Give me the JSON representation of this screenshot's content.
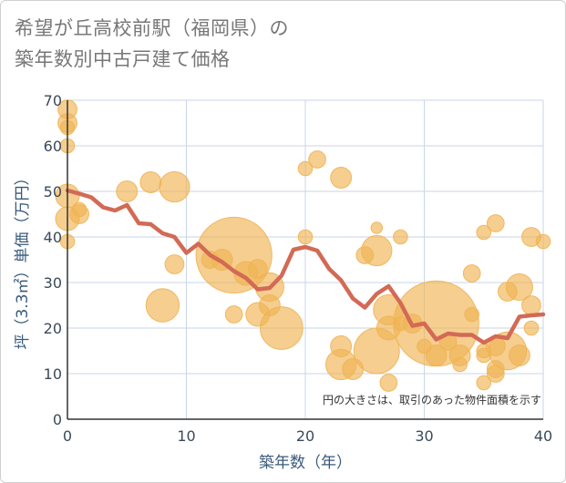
{
  "title_line1": "希望が丘高校前駅（福岡県）の",
  "title_line2": "築年数別中古戸建て価格",
  "colors": {
    "bubble": "#f0b454",
    "line": "#d26a55",
    "grid": "#c8d6e6",
    "axis": "#333333"
  },
  "chart_data": {
    "type": "scatter",
    "xlabel": "築年数（年）",
    "ylabel": "坪（3.3㎡）単価（万円）",
    "xlim": [
      0,
      40
    ],
    "ylim": [
      0,
      70
    ],
    "x_ticks": [
      0,
      10,
      20,
      30,
      40
    ],
    "y_ticks": [
      0,
      10,
      20,
      30,
      40,
      50,
      60,
      70
    ],
    "note": "円の大きさは、取引のあった物件面積を示す",
    "bubbles": [
      {
        "x": 0,
        "y": 68,
        "s": 2
      },
      {
        "x": 0,
        "y": 65,
        "s": 2
      },
      {
        "x": 0,
        "y": 64,
        "s": 1.5
      },
      {
        "x": 0,
        "y": 60,
        "s": 1.5
      },
      {
        "x": 0,
        "y": 49,
        "s": 2.5
      },
      {
        "x": 0,
        "y": 44,
        "s": 2.5
      },
      {
        "x": 0,
        "y": 39,
        "s": 1.5
      },
      {
        "x": 1,
        "y": 46,
        "s": 1.5
      },
      {
        "x": 1,
        "y": 45,
        "s": 2
      },
      {
        "x": 5,
        "y": 50,
        "s": 2.2
      },
      {
        "x": 7,
        "y": 52,
        "s": 2.2
      },
      {
        "x": 9,
        "y": 51,
        "s": 3.2
      },
      {
        "x": 9,
        "y": 34,
        "s": 2
      },
      {
        "x": 8,
        "y": 25,
        "s": 3.5
      },
      {
        "x": 12,
        "y": 35,
        "s": 1.8
      },
      {
        "x": 13,
        "y": 35,
        "s": 2.2
      },
      {
        "x": 14,
        "y": 36,
        "s": 8
      },
      {
        "x": 14,
        "y": 23,
        "s": 1.8
      },
      {
        "x": 15,
        "y": 32,
        "s": 2.5
      },
      {
        "x": 16,
        "y": 33,
        "s": 2
      },
      {
        "x": 16,
        "y": 23,
        "s": 2.5
      },
      {
        "x": 17,
        "y": 29,
        "s": 3
      },
      {
        "x": 17,
        "y": 25,
        "s": 2.2
      },
      {
        "x": 18,
        "y": 20,
        "s": 4.5
      },
      {
        "x": 20,
        "y": 55,
        "s": 1.5
      },
      {
        "x": 21,
        "y": 57,
        "s": 1.8
      },
      {
        "x": 20,
        "y": 40,
        "s": 1.5
      },
      {
        "x": 23,
        "y": 53,
        "s": 2.2
      },
      {
        "x": 23,
        "y": 16,
        "s": 2.2
      },
      {
        "x": 23,
        "y": 12,
        "s": 3.2
      },
      {
        "x": 24,
        "y": 11,
        "s": 2.2
      },
      {
        "x": 25,
        "y": 36,
        "s": 1.8
      },
      {
        "x": 26,
        "y": 42,
        "s": 1.2
      },
      {
        "x": 26,
        "y": 37,
        "s": 3.2
      },
      {
        "x": 26,
        "y": 15,
        "s": 4.8
      },
      {
        "x": 27,
        "y": 24,
        "s": 3.2
      },
      {
        "x": 27,
        "y": 20,
        "s": 2.5
      },
      {
        "x": 27,
        "y": 8,
        "s": 1.8
      },
      {
        "x": 28,
        "y": 40,
        "s": 1.5
      },
      {
        "x": 28,
        "y": 21,
        "s": 1.5
      },
      {
        "x": 29,
        "y": 21,
        "s": 2
      },
      {
        "x": 30,
        "y": 16,
        "s": 1.5
      },
      {
        "x": 31,
        "y": 21,
        "s": 9
      },
      {
        "x": 31,
        "y": 14,
        "s": 2.2
      },
      {
        "x": 32,
        "y": 17,
        "s": 1.8
      },
      {
        "x": 33,
        "y": 14,
        "s": 2.2
      },
      {
        "x": 33,
        "y": 12,
        "s": 1.5
      },
      {
        "x": 34,
        "y": 32,
        "s": 1.8
      },
      {
        "x": 34,
        "y": 23,
        "s": 1.5
      },
      {
        "x": 35,
        "y": 41,
        "s": 1.5
      },
      {
        "x": 35,
        "y": 15,
        "s": 1.5
      },
      {
        "x": 35,
        "y": 14,
        "s": 1.5
      },
      {
        "x": 35,
        "y": 8,
        "s": 1.5
      },
      {
        "x": 36,
        "y": 43,
        "s": 1.8
      },
      {
        "x": 36,
        "y": 16,
        "s": 2
      },
      {
        "x": 36,
        "y": 11,
        "s": 1.8
      },
      {
        "x": 36,
        "y": 10,
        "s": 1.8
      },
      {
        "x": 37,
        "y": 28,
        "s": 2
      },
      {
        "x": 37,
        "y": 15,
        "s": 4
      },
      {
        "x": 38,
        "y": 29,
        "s": 2.8
      },
      {
        "x": 38,
        "y": 14,
        "s": 2.2
      },
      {
        "x": 39,
        "y": 40,
        "s": 2
      },
      {
        "x": 39,
        "y": 25,
        "s": 2
      },
      {
        "x": 39,
        "y": 20,
        "s": 1.5
      },
      {
        "x": 40,
        "y": 39,
        "s": 1.5
      }
    ],
    "line": {
      "x": [
        0,
        1,
        2,
        3,
        4,
        5,
        6,
        7,
        8,
        9,
        10,
        11,
        12,
        13,
        14,
        15,
        16,
        17,
        18,
        19,
        20,
        21,
        22,
        23,
        24,
        25,
        26,
        27,
        28,
        29,
        30,
        31,
        32,
        33,
        34,
        35,
        36,
        37,
        38,
        39,
        40
      ],
      "y": [
        50.2,
        49.5,
        48.7,
        46.5,
        45.8,
        47,
        43,
        42.8,
        40.8,
        40,
        36.5,
        38.5,
        36,
        34.5,
        32.5,
        31,
        28.5,
        28.8,
        31.5,
        37.2,
        37.8,
        37,
        33,
        30.5,
        26.5,
        24.5,
        27.5,
        29.2,
        25.5,
        20.5,
        21,
        17.5,
        18.8,
        18.5,
        18.5,
        16.8,
        18.2,
        17.8,
        22.5,
        22.8,
        23
      ]
    }
  }
}
